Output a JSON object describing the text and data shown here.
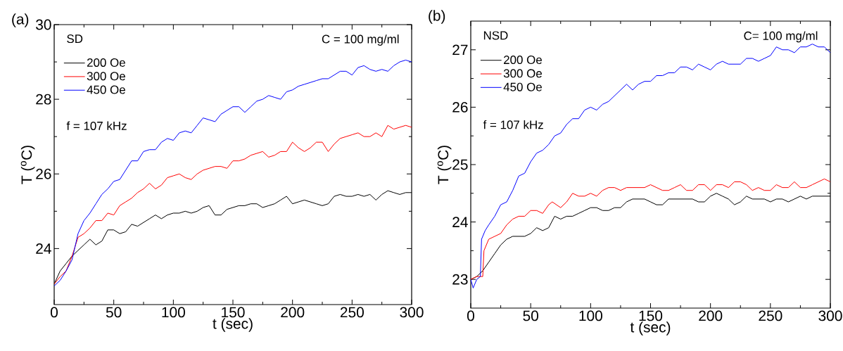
{
  "chart_data": [
    {
      "type": "line",
      "title": "(a)",
      "xlabel": "t (sec)",
      "ylabel": "T ($^{o}$C)",
      "annotations": [
        "SD",
        "C = 100 mg/ml",
        "f = 107 kHz"
      ],
      "xlim": [
        0,
        300
      ],
      "xticks": [
        0,
        50,
        100,
        150,
        200,
        250,
        300
      ],
      "ylim": [
        22.5,
        30
      ],
      "yticks": [
        24,
        26,
        28,
        30
      ],
      "legend": "top left",
      "marker": "none",
      "line_style": "solid",
      "series": [
        {
          "name": "200 Oe",
          "color": "#000000",
          "x": [
            0,
            5,
            10,
            15,
            20,
            25,
            30,
            35,
            40,
            45,
            50,
            55,
            60,
            65,
            70,
            75,
            80,
            85,
            90,
            95,
            100,
            105,
            110,
            115,
            120,
            125,
            130,
            135,
            140,
            145,
            150,
            155,
            160,
            165,
            170,
            175,
            180,
            185,
            190,
            195,
            200,
            205,
            210,
            215,
            220,
            225,
            230,
            235,
            240,
            245,
            250,
            255,
            260,
            265,
            270,
            275,
            280,
            285,
            290,
            295,
            300
          ],
          "values": [
            23.05,
            23.4,
            23.6,
            23.8,
            23.95,
            24.1,
            24.25,
            24.1,
            24.2,
            24.5,
            24.5,
            24.4,
            24.45,
            24.65,
            24.6,
            24.7,
            24.8,
            24.9,
            24.8,
            24.9,
            24.95,
            24.95,
            25.0,
            24.95,
            25.0,
            25.1,
            25.15,
            24.9,
            24.9,
            25.05,
            25.1,
            25.15,
            25.15,
            25.2,
            25.2,
            25.1,
            25.15,
            25.2,
            25.3,
            25.4,
            25.2,
            25.25,
            25.3,
            25.25,
            25.2,
            25.15,
            25.2,
            25.4,
            25.45,
            25.4,
            25.4,
            25.45,
            25.4,
            25.45,
            25.3,
            25.45,
            25.55,
            25.5,
            25.45,
            25.5,
            25.5
          ]
        },
        {
          "name": "300 Oe",
          "color": "#ff0000",
          "x": [
            0,
            5,
            10,
            15,
            20,
            25,
            30,
            35,
            40,
            45,
            50,
            55,
            60,
            65,
            70,
            75,
            80,
            85,
            90,
            95,
            100,
            105,
            110,
            115,
            120,
            125,
            130,
            135,
            140,
            145,
            150,
            155,
            160,
            165,
            170,
            175,
            180,
            185,
            190,
            195,
            200,
            205,
            210,
            215,
            220,
            225,
            230,
            235,
            240,
            245,
            250,
            255,
            260,
            265,
            270,
            275,
            280,
            285,
            290,
            295,
            300
          ],
          "values": [
            23.05,
            23.25,
            23.4,
            23.8,
            24.3,
            24.4,
            24.55,
            24.75,
            24.75,
            24.95,
            24.9,
            25.15,
            25.25,
            25.35,
            25.5,
            25.6,
            25.75,
            25.6,
            25.7,
            25.9,
            25.95,
            26.0,
            25.9,
            25.85,
            26.0,
            26.1,
            26.15,
            26.2,
            26.2,
            26.15,
            26.35,
            26.35,
            26.4,
            26.5,
            26.55,
            26.6,
            26.45,
            26.5,
            26.6,
            26.6,
            26.85,
            26.7,
            26.6,
            26.7,
            26.85,
            26.85,
            26.6,
            26.8,
            26.95,
            27.0,
            27.05,
            27.1,
            27.0,
            27.0,
            27.1,
            27.0,
            27.3,
            27.2,
            27.25,
            27.3,
            27.25
          ]
        },
        {
          "name": "450 Oe",
          "color": "#0000ff",
          "x": [
            0,
            5,
            10,
            15,
            20,
            25,
            30,
            35,
            40,
            45,
            50,
            55,
            60,
            65,
            70,
            75,
            80,
            85,
            90,
            95,
            100,
            105,
            110,
            115,
            120,
            125,
            130,
            135,
            140,
            145,
            150,
            155,
            160,
            165,
            170,
            175,
            180,
            185,
            190,
            195,
            200,
            205,
            210,
            215,
            220,
            225,
            230,
            235,
            240,
            245,
            250,
            255,
            260,
            265,
            270,
            275,
            280,
            285,
            290,
            295,
            300
          ],
          "values": [
            23.0,
            23.15,
            23.4,
            23.7,
            24.4,
            24.75,
            24.95,
            25.2,
            25.45,
            25.6,
            25.8,
            25.85,
            26.1,
            26.35,
            26.35,
            26.6,
            26.65,
            26.65,
            26.85,
            26.95,
            26.9,
            27.1,
            27.15,
            27.1,
            27.3,
            27.5,
            27.45,
            27.4,
            27.6,
            27.7,
            27.8,
            27.8,
            27.65,
            27.8,
            27.95,
            28.0,
            28.1,
            28.05,
            28.0,
            28.2,
            28.25,
            28.35,
            28.4,
            28.45,
            28.5,
            28.55,
            28.55,
            28.65,
            28.75,
            28.75,
            28.65,
            28.85,
            28.9,
            28.8,
            28.75,
            28.8,
            28.75,
            28.9,
            29.0,
            29.05,
            29.0
          ]
        }
      ]
    },
    {
      "type": "line",
      "title": "(b)",
      "xlabel": "t (sec)",
      "ylabel": "T ($^{o}$C)",
      "annotations": [
        "NSD",
        "C= 100 mg/ml",
        "f = 107 kHz"
      ],
      "xlim": [
        0,
        300
      ],
      "xticks": [
        0,
        50,
        100,
        150,
        200,
        250,
        300
      ],
      "ylim": [
        22.5,
        27.5
      ],
      "yticks": [
        23,
        24,
        25,
        26,
        27
      ],
      "legend": "top left",
      "marker": "none",
      "line_style": "solid",
      "series": [
        {
          "name": "200 Oe",
          "color": "#000000",
          "x": [
            0,
            5,
            10,
            15,
            20,
            25,
            30,
            35,
            40,
            45,
            50,
            55,
            60,
            65,
            70,
            75,
            80,
            85,
            90,
            95,
            100,
            105,
            110,
            115,
            120,
            125,
            130,
            135,
            140,
            145,
            150,
            155,
            160,
            165,
            170,
            175,
            180,
            185,
            190,
            195,
            200,
            205,
            210,
            215,
            220,
            225,
            230,
            235,
            240,
            245,
            250,
            255,
            260,
            265,
            270,
            275,
            280,
            285,
            290,
            295,
            300
          ],
          "values": [
            23.0,
            23.05,
            23.15,
            23.3,
            23.45,
            23.6,
            23.7,
            23.75,
            23.75,
            23.75,
            23.8,
            23.9,
            23.85,
            23.9,
            24.1,
            24.05,
            24.1,
            24.1,
            24.15,
            24.2,
            24.25,
            24.25,
            24.2,
            24.2,
            24.25,
            24.25,
            24.35,
            24.4,
            24.4,
            24.4,
            24.35,
            24.3,
            24.3,
            24.4,
            24.4,
            24.4,
            24.4,
            24.4,
            24.35,
            24.35,
            24.45,
            24.5,
            24.45,
            24.4,
            24.3,
            24.35,
            24.45,
            24.4,
            24.4,
            24.4,
            24.35,
            24.4,
            24.4,
            24.35,
            24.4,
            24.45,
            24.4,
            24.45,
            24.45,
            24.45,
            24.45
          ]
        },
        {
          "name": "300 Oe",
          "color": "#ff0000",
          "x": [
            0,
            5,
            10,
            11,
            15,
            20,
            25,
            30,
            35,
            40,
            45,
            50,
            55,
            60,
            65,
            68,
            75,
            80,
            85,
            90,
            95,
            100,
            105,
            110,
            115,
            120,
            125,
            130,
            135,
            140,
            145,
            150,
            155,
            160,
            165,
            170,
            175,
            180,
            185,
            190,
            195,
            200,
            205,
            210,
            215,
            220,
            225,
            230,
            235,
            240,
            245,
            250,
            255,
            260,
            265,
            270,
            275,
            280,
            285,
            290,
            295,
            300
          ],
          "values": [
            23.0,
            23.05,
            23.05,
            23.5,
            23.7,
            23.75,
            23.8,
            23.95,
            24.05,
            24.1,
            24.1,
            24.2,
            24.2,
            24.15,
            24.3,
            24.35,
            24.25,
            24.35,
            24.5,
            24.45,
            24.45,
            24.5,
            24.45,
            24.55,
            24.6,
            24.6,
            24.55,
            24.6,
            24.6,
            24.6,
            24.6,
            24.65,
            24.6,
            24.55,
            24.55,
            24.6,
            24.65,
            24.55,
            24.55,
            24.65,
            24.65,
            24.55,
            24.65,
            24.65,
            24.6,
            24.7,
            24.7,
            24.65,
            24.55,
            24.6,
            24.55,
            24.55,
            24.65,
            24.6,
            24.6,
            24.7,
            24.6,
            24.6,
            24.65,
            24.7,
            24.75,
            24.7
          ]
        },
        {
          "name": "450 Oe",
          "color": "#0000ff",
          "x": [
            0,
            2,
            5,
            8,
            9,
            12,
            15,
            20,
            25,
            30,
            35,
            40,
            45,
            50,
            55,
            60,
            65,
            70,
            75,
            80,
            85,
            90,
            95,
            100,
            105,
            110,
            115,
            120,
            125,
            130,
            135,
            140,
            145,
            150,
            155,
            160,
            165,
            170,
            175,
            180,
            185,
            190,
            195,
            200,
            205,
            210,
            215,
            220,
            225,
            230,
            235,
            240,
            245,
            250,
            255,
            260,
            265,
            270,
            275,
            280,
            285,
            290,
            295,
            300
          ],
          "values": [
            23.0,
            22.85,
            23.0,
            23.05,
            23.7,
            23.85,
            23.95,
            24.1,
            24.3,
            24.35,
            24.55,
            24.8,
            24.85,
            25.05,
            25.2,
            25.25,
            25.35,
            25.5,
            25.55,
            25.7,
            25.8,
            25.8,
            25.95,
            26.0,
            25.95,
            26.05,
            26.1,
            26.2,
            26.3,
            26.4,
            26.3,
            26.4,
            26.45,
            26.45,
            26.55,
            26.55,
            26.6,
            26.6,
            26.7,
            26.7,
            26.65,
            26.75,
            26.7,
            26.65,
            26.75,
            26.8,
            26.75,
            26.75,
            26.75,
            26.85,
            26.85,
            26.8,
            26.85,
            26.9,
            27.05,
            27.0,
            27.0,
            26.95,
            27.05,
            27.05,
            27.1,
            27.05,
            27.05,
            26.95
          ]
        }
      ]
    }
  ]
}
